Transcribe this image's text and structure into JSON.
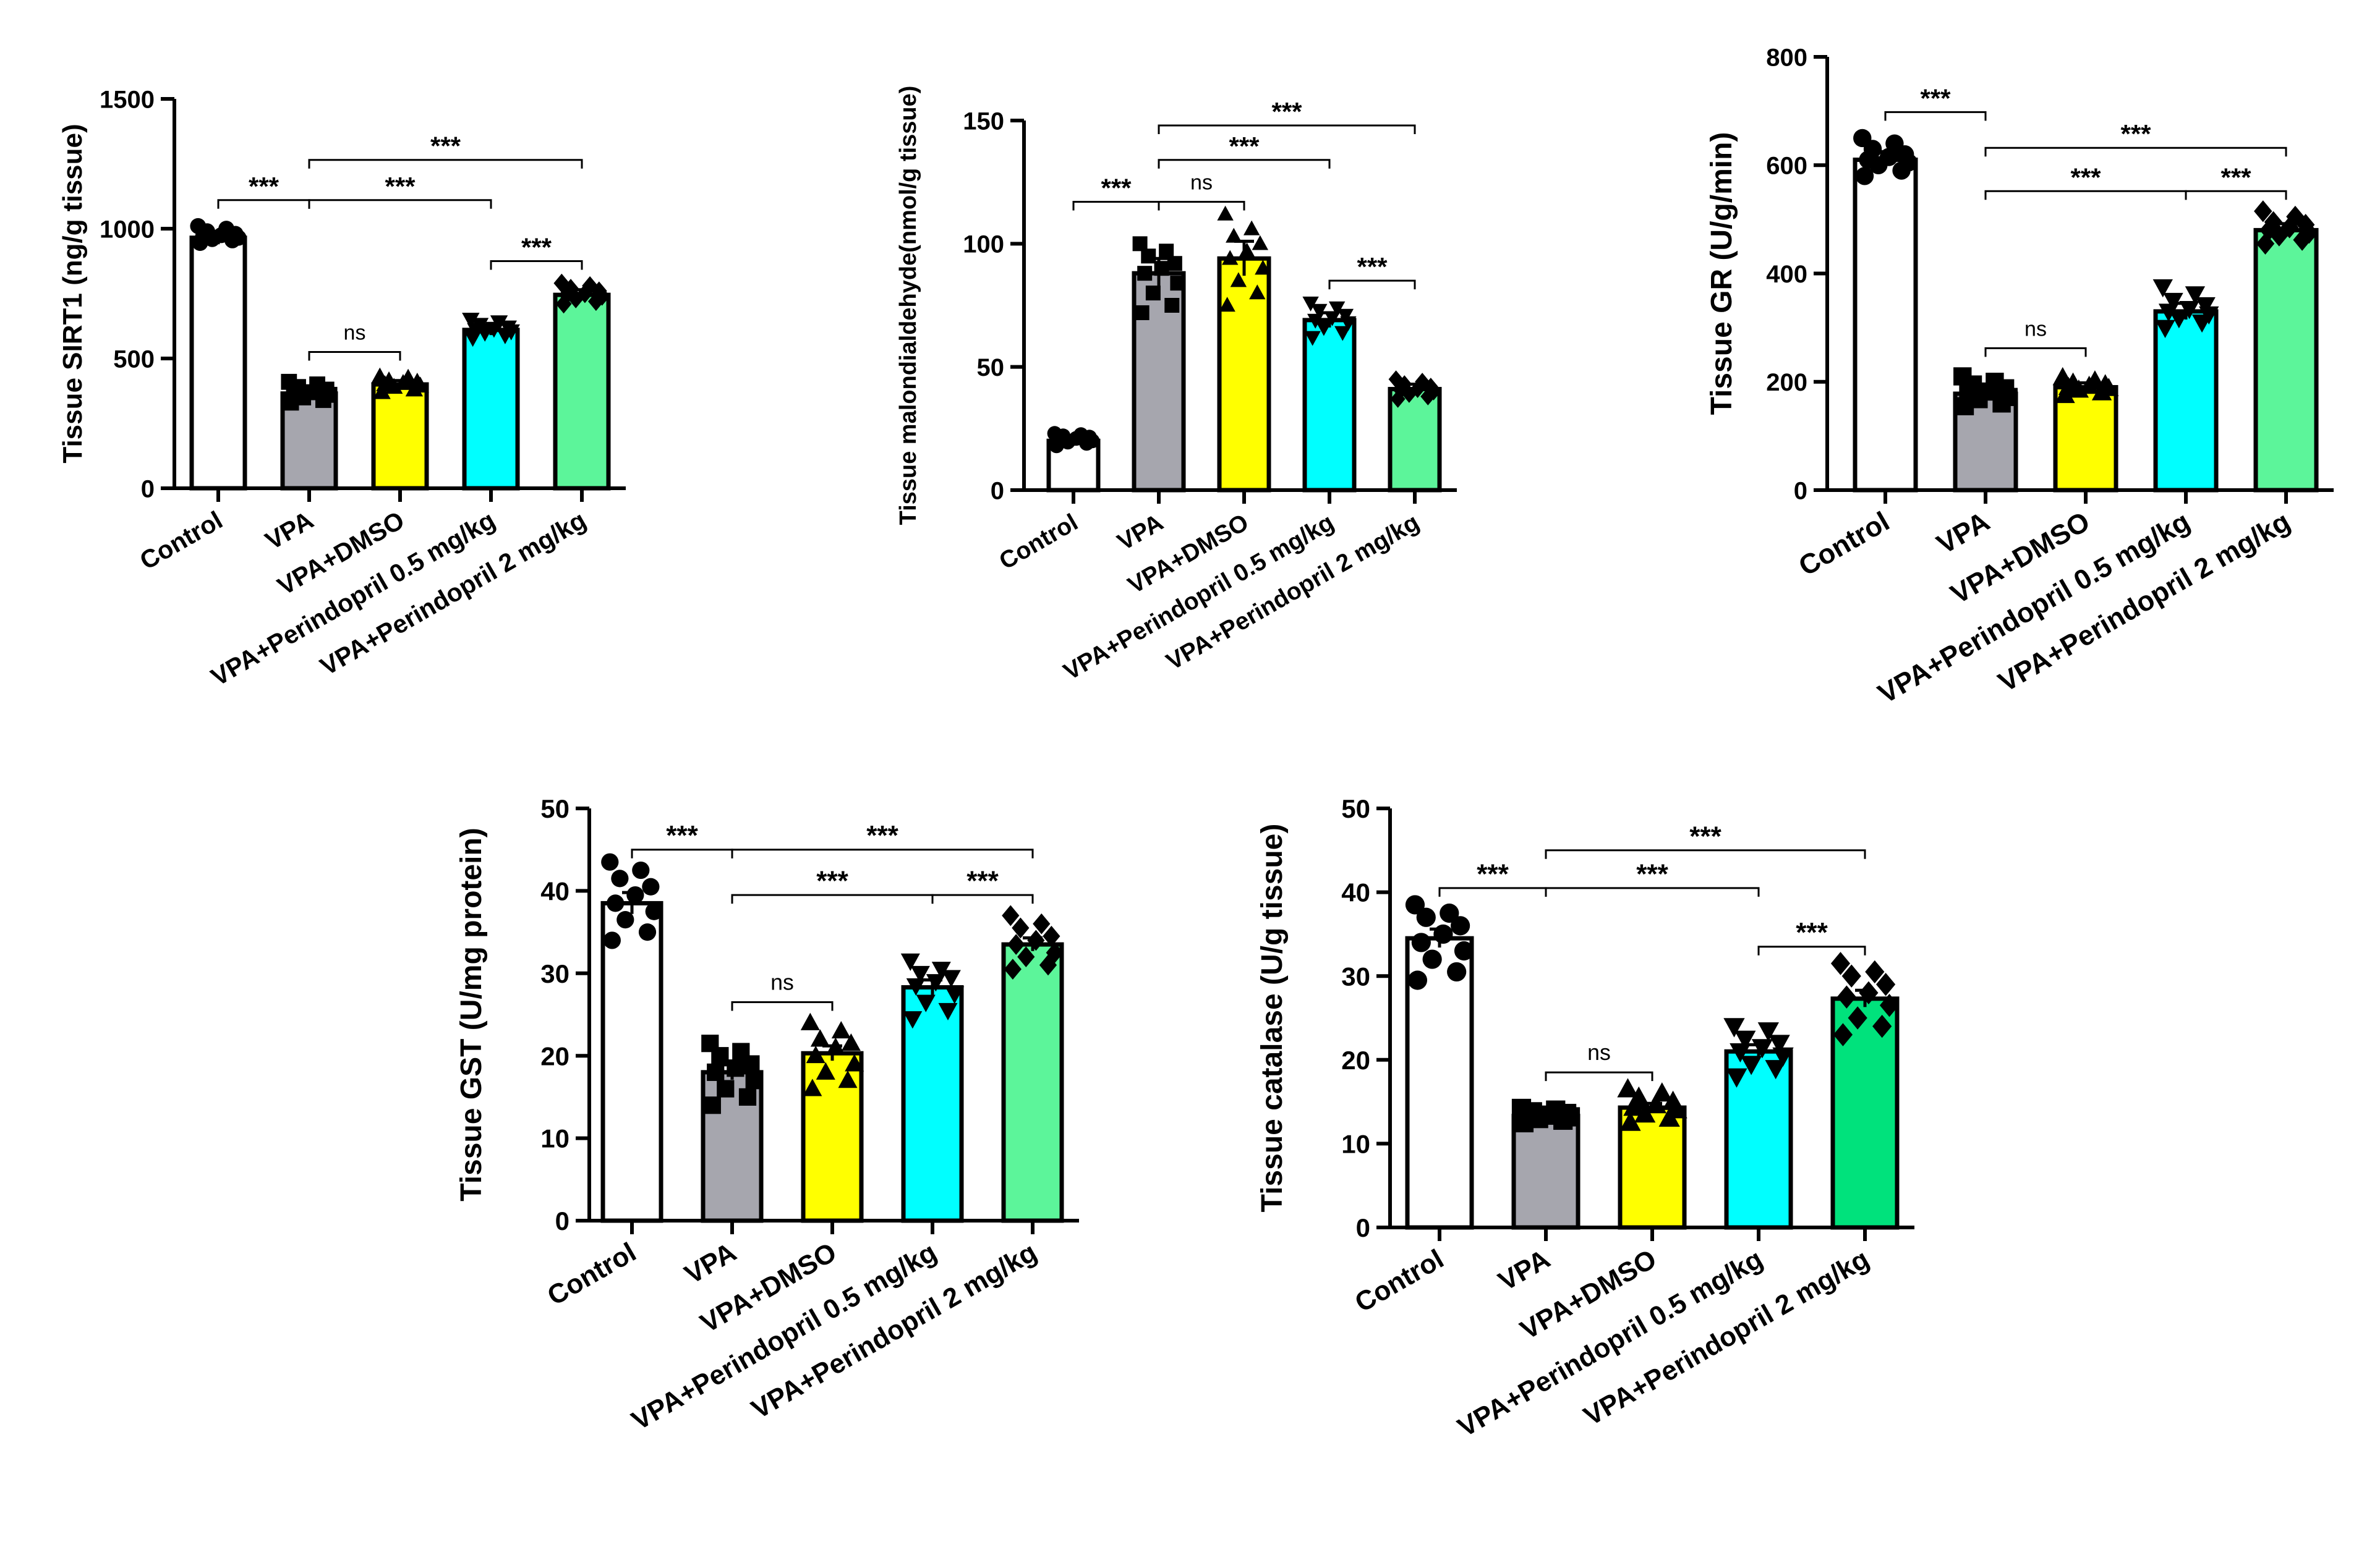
{
  "chart_data": [
    {
      "type": "bar",
      "ylabel": "Tissue SIRT1 (ng/g tissue)",
      "xlabel": "",
      "ylim": [
        0,
        1500
      ],
      "yticks": [
        0,
        500,
        1000,
        1500
      ],
      "categories": [
        "Control",
        "VPA",
        "VPA+DMSO",
        "VPA+Perindopril 0.5 mg/kg",
        "VPA+Perindopril 2 mg/kg"
      ],
      "values": [
        965,
        365,
        400,
        610,
        745
      ],
      "errors": [
        25,
        20,
        15,
        20,
        20
      ],
      "colors": [
        "#ffffff",
        "#a6a6ae",
        "#ffff00",
        "#00ffff",
        "#5cf59a"
      ],
      "markers": [
        "circle",
        "square",
        "triangle",
        "triangle-down",
        "diamond"
      ],
      "points": [
        [
          945,
          955,
          960,
          965,
          970,
          975,
          980,
          990,
          1000,
          1010
        ],
        [
          330,
          340,
          350,
          360,
          365,
          370,
          380,
          390,
          400,
          410
        ],
        [
          370,
          380,
          390,
          395,
          400,
          405,
          410,
          415,
          425,
          430
        ],
        [
          580,
          590,
          600,
          605,
          610,
          615,
          620,
          630,
          640,
          650
        ],
        [
          710,
          720,
          730,
          740,
          745,
          750,
          760,
          770,
          780,
          790
        ]
      ],
      "comparisons": [
        {
          "from": 0,
          "to": 1,
          "label": "***",
          "level": 1110
        },
        {
          "from": 1,
          "to": 2,
          "label": "ns",
          "level": 525
        },
        {
          "from": 1,
          "to": 3,
          "label": "***",
          "level": 1110
        },
        {
          "from": 1,
          "to": 4,
          "label": "***",
          "level": 1265
        },
        {
          "from": 3,
          "to": 4,
          "label": "***",
          "level": 875
        }
      ]
    },
    {
      "type": "bar",
      "ylabel": "Tissue malondialdehyde(nmol/g tissue)",
      "xlabel": "",
      "ylim": [
        0,
        150
      ],
      "yticks": [
        0,
        50,
        100,
        150
      ],
      "categories": [
        "Control",
        "VPA",
        "VPA+DMSO",
        "VPA+Perindopril 0.5 mg/kg",
        "VPA+Perindopril 2 mg/kg"
      ],
      "values": [
        20,
        88,
        94,
        69,
        41
      ],
      "errors": [
        2,
        6,
        7,
        3,
        2
      ],
      "colors": [
        "#ffffff",
        "#a6a6ae",
        "#ffff00",
        "#00ffff",
        "#5cf59a"
      ],
      "markers": [
        "circle",
        "square",
        "triangle",
        "triangle-down",
        "diamond"
      ],
      "points": [
        [
          18,
          19,
          19.5,
          20,
          20.5,
          21,
          21.5,
          22,
          22.5,
          23
        ],
        [
          72,
          75,
          80,
          84,
          88,
          90,
          92,
          95,
          97,
          100
        ],
        [
          75,
          80,
          85,
          90,
          94,
          97,
          100,
          103,
          106,
          112
        ],
        [
          62,
          64,
          66,
          68,
          69,
          70,
          71,
          73,
          74,
          76
        ],
        [
          37,
          38,
          39,
          40,
          40.5,
          41,
          42,
          43,
          44,
          45
        ]
      ],
      "comparisons": [
        {
          "from": 0,
          "to": 1,
          "label": "***",
          "level": 117
        },
        {
          "from": 1,
          "to": 2,
          "label": "ns",
          "level": 117
        },
        {
          "from": 1,
          "to": 3,
          "label": "***",
          "level": 134
        },
        {
          "from": 1,
          "to": 4,
          "label": "***",
          "level": 148
        },
        {
          "from": 3,
          "to": 4,
          "label": "***",
          "level": 85
        }
      ]
    },
    {
      "type": "bar",
      "ylabel": "Tissue GR (U/g/min)",
      "xlabel": "",
      "ylim": [
        0,
        800
      ],
      "yticks": [
        0,
        200,
        400,
        600,
        800
      ],
      "categories": [
        "Control",
        "VPA",
        "VPA+DMSO",
        "VPA+Perindopril 0.5 mg/kg",
        "VPA+Perindopril 2 mg/kg"
      ],
      "values": [
        610,
        178,
        190,
        330,
        480
      ],
      "errors": [
        15,
        12,
        8,
        15,
        12
      ],
      "colors": [
        "#ffffff",
        "#a6a6ae",
        "#ffff00",
        "#00ffff",
        "#5cf59a"
      ],
      "markers": [
        "circle",
        "square",
        "triangle",
        "triangle-down",
        "diamond"
      ],
      "points": [
        [
          580,
          590,
          600,
          605,
          610,
          615,
          620,
          630,
          640,
          650
        ],
        [
          155,
          160,
          168,
          172,
          178,
          182,
          188,
          195,
          200,
          210
        ],
        [
          175,
          180,
          185,
          188,
          190,
          192,
          195,
          198,
          202,
          208
        ],
        [
          300,
          310,
          318,
          325,
          330,
          335,
          342,
          350,
          362,
          375
        ],
        [
          455,
          462,
          470,
          475,
          480,
          485,
          490,
          495,
          505,
          515
        ]
      ],
      "comparisons": [
        {
          "from": 0,
          "to": 1,
          "label": "***",
          "level": 698
        },
        {
          "from": 1,
          "to": 2,
          "label": "ns",
          "level": 262
        },
        {
          "from": 1,
          "to": 3,
          "label": "***",
          "level": 552
        },
        {
          "from": 1,
          "to": 4,
          "label": "***",
          "level": 632
        },
        {
          "from": 3,
          "to": 4,
          "label": "***",
          "level": 552
        }
      ]
    },
    {
      "type": "bar",
      "ylabel": "Tissue GST (U/mg protein)",
      "xlabel": "",
      "ylim": [
        0,
        50
      ],
      "yticks": [
        0,
        10,
        20,
        30,
        40,
        50
      ],
      "categories": [
        "Control",
        "VPA",
        "VPA+DMSO",
        "VPA+Perindopril 0.5 mg/kg",
        "VPA+Perindopril 2 mg/kg"
      ],
      "values": [
        38.5,
        18,
        20.3,
        28.3,
        33.5
      ],
      "errors": [
        1.3,
        0.9,
        0.9,
        0.9,
        0.8
      ],
      "colors": [
        "#ffffff",
        "#a6a6ae",
        "#ffff00",
        "#00ffff",
        "#5cf59a"
      ],
      "markers": [
        "circle",
        "square",
        "triangle",
        "triangle-down",
        "diamond"
      ],
      "points": [
        [
          34,
          35,
          36.5,
          37.5,
          38.5,
          39.5,
          40.5,
          41.5,
          42.5,
          43.5
        ],
        [
          14,
          15,
          16,
          17,
          18,
          18.5,
          19,
          20,
          20.5,
          21.5
        ],
        [
          16,
          17,
          18,
          19,
          20,
          21,
          21.5,
          22,
          23,
          24
        ],
        [
          24.5,
          25.5,
          26.5,
          27.5,
          28.5,
          29,
          29.5,
          30,
          30.5,
          31.5
        ],
        [
          30.5,
          31,
          32,
          32.5,
          33.5,
          34,
          34.5,
          35.5,
          36,
          37
        ]
      ],
      "comparisons": [
        {
          "from": 0,
          "to": 1,
          "label": "***",
          "level": 45
        },
        {
          "from": 1,
          "to": 2,
          "label": "ns",
          "level": 26.5
        },
        {
          "from": 1,
          "to": 3,
          "label": "***",
          "level": 39.5
        },
        {
          "from": 1,
          "to": 4,
          "label": "***",
          "level": 45
        },
        {
          "from": 3,
          "to": 4,
          "label": "***",
          "level": 39.5
        }
      ]
    },
    {
      "type": "bar",
      "ylabel": "Tissue catalase (U/g tissue)",
      "xlabel": "",
      "ylim": [
        0,
        50
      ],
      "yticks": [
        0,
        10,
        20,
        30,
        40,
        50
      ],
      "categories": [
        "Control",
        "VPA",
        "VPA+DMSO",
        "VPA+Perindopril 0.5 mg/kg",
        "VPA+Perindopril 2 mg/kg"
      ],
      "values": [
        34.5,
        13.3,
        14.3,
        21,
        27.3
      ],
      "errors": [
        1.1,
        0.3,
        0.5,
        0.8,
        1
      ],
      "colors": [
        "#ffffff",
        "#a6a6ae",
        "#ffff00",
        "#00ffff",
        "#00e27c"
      ],
      "markers": [
        "circle",
        "square",
        "triangle",
        "triangle-down",
        "diamond"
      ],
      "points": [
        [
          29.5,
          30.5,
          32,
          33,
          34,
          35,
          36,
          37,
          37.5,
          38.5
        ],
        [
          12.5,
          12.8,
          13,
          13.2,
          13.3,
          13.4,
          13.6,
          13.8,
          14,
          14.2
        ],
        [
          12.5,
          13,
          13.5,
          14,
          14.3,
          14.6,
          15,
          15.5,
          16,
          16.5
        ],
        [
          18,
          19,
          19.5,
          20.5,
          21,
          21.5,
          22,
          22.5,
          23.5,
          24
        ],
        [
          23,
          24,
          25,
          26.5,
          27.5,
          28,
          29,
          30,
          30.5,
          31.5
        ]
      ],
      "comparisons": [
        {
          "from": 0,
          "to": 1,
          "label": "***",
          "level": 40.5
        },
        {
          "from": 1,
          "to": 2,
          "label": "ns",
          "level": 18.5
        },
        {
          "from": 1,
          "to": 3,
          "label": "***",
          "level": 40.5
        },
        {
          "from": 1,
          "to": 4,
          "label": "***",
          "level": 45
        },
        {
          "from": 3,
          "to": 4,
          "label": "***",
          "level": 33.5
        }
      ]
    }
  ]
}
